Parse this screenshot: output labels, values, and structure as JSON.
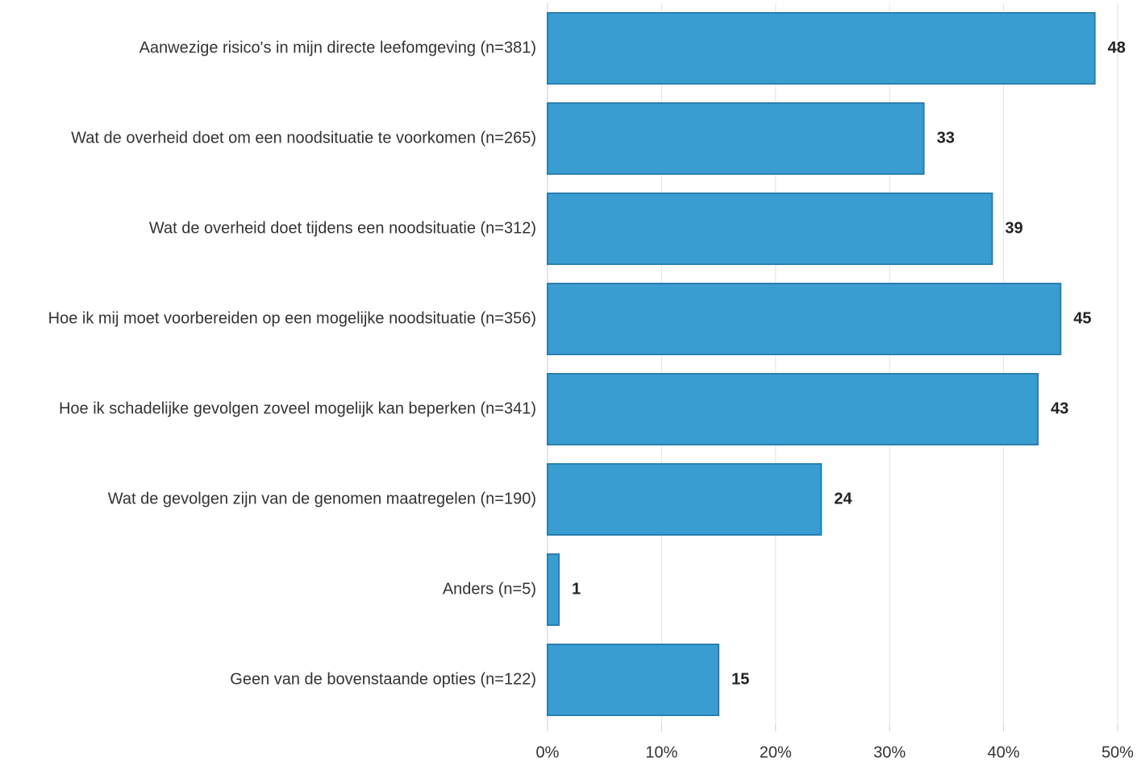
{
  "chart_data": {
    "type": "bar",
    "orientation": "horizontal",
    "categories": [
      "Aanwezige risico's in mijn directe leefomgeving (n=381)",
      "Wat de overheid doet om een noodsituatie te voorkomen (n=265)",
      "Wat de overheid doet tijdens een noodsituatie (n=312)",
      "Hoe ik mij moet voorbereiden op een mogelijke noodsituatie (n=356)",
      "Hoe ik schadelijke gevolgen zoveel mogelijk kan beperken (n=341)",
      "Wat de gevolgen zijn van de genomen maatregelen (n=190)",
      "Anders (n=5)",
      "Geen van de bovenstaande opties (n=122)"
    ],
    "values": [
      48,
      33,
      39,
      45,
      43,
      24,
      1,
      15
    ],
    "color": "#3a9dd1",
    "xlim": [
      0,
      51.7
    ],
    "xticks": [
      {
        "value": 0,
        "label": "0%"
      },
      {
        "value": 10,
        "label": "10%"
      },
      {
        "value": 20,
        "label": "20%"
      },
      {
        "value": 30,
        "label": "30%"
      },
      {
        "value": 40,
        "label": "40%"
      },
      {
        "value": 50,
        "label": "50%"
      }
    ],
    "grid": true
  }
}
